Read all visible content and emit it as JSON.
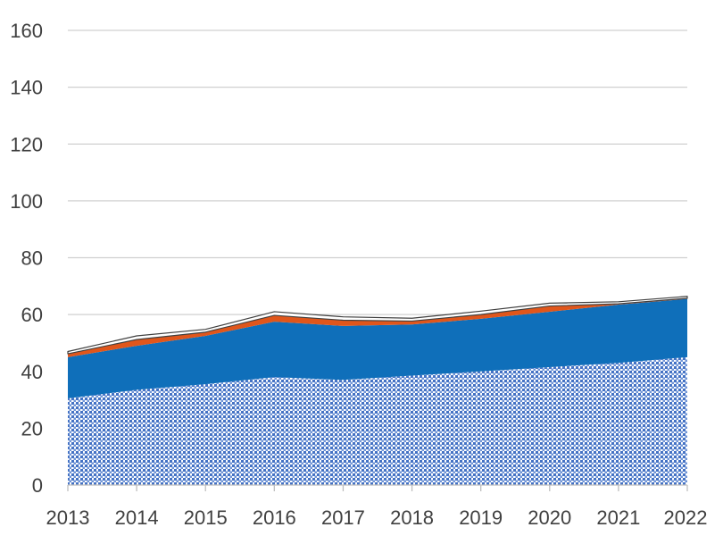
{
  "chart_data": {
    "type": "area",
    "stacked": true,
    "categories": [
      "2013",
      "2014",
      "2015",
      "2016",
      "2017",
      "2018",
      "2019",
      "2020",
      "2021",
      "2022"
    ],
    "series": [
      {
        "pattern": "dotted",
        "color": "#4472c4",
        "values": [
          30.5,
          33.5,
          35.5,
          38,
          37,
          38.5,
          40,
          41.5,
          43,
          45
        ]
      },
      {
        "pattern": "solid",
        "color": "#0f6fba",
        "values": [
          14.5,
          15.5,
          17,
          19.5,
          19,
          18,
          18.5,
          19.5,
          20.5,
          20.5
        ]
      },
      {
        "pattern": "solid",
        "color": "#e0561b",
        "values": [
          1.2,
          2.2,
          1.3,
          2.2,
          2,
          1.2,
          1.5,
          2,
          0.3,
          0.2
        ]
      },
      {
        "pattern": "solid",
        "color": "#ffffff",
        "values": [
          0.8,
          1.3,
          1,
          1.3,
          1.2,
          1,
          1.2,
          1,
          0.7,
          0.7
        ]
      }
    ],
    "ylim": [
      0,
      160
    ],
    "yticks": [
      0,
      20,
      40,
      60,
      80,
      100,
      120,
      140,
      160
    ],
    "grid": true,
    "legend": "none",
    "title": "",
    "xlabel": "",
    "ylabel": ""
  }
}
